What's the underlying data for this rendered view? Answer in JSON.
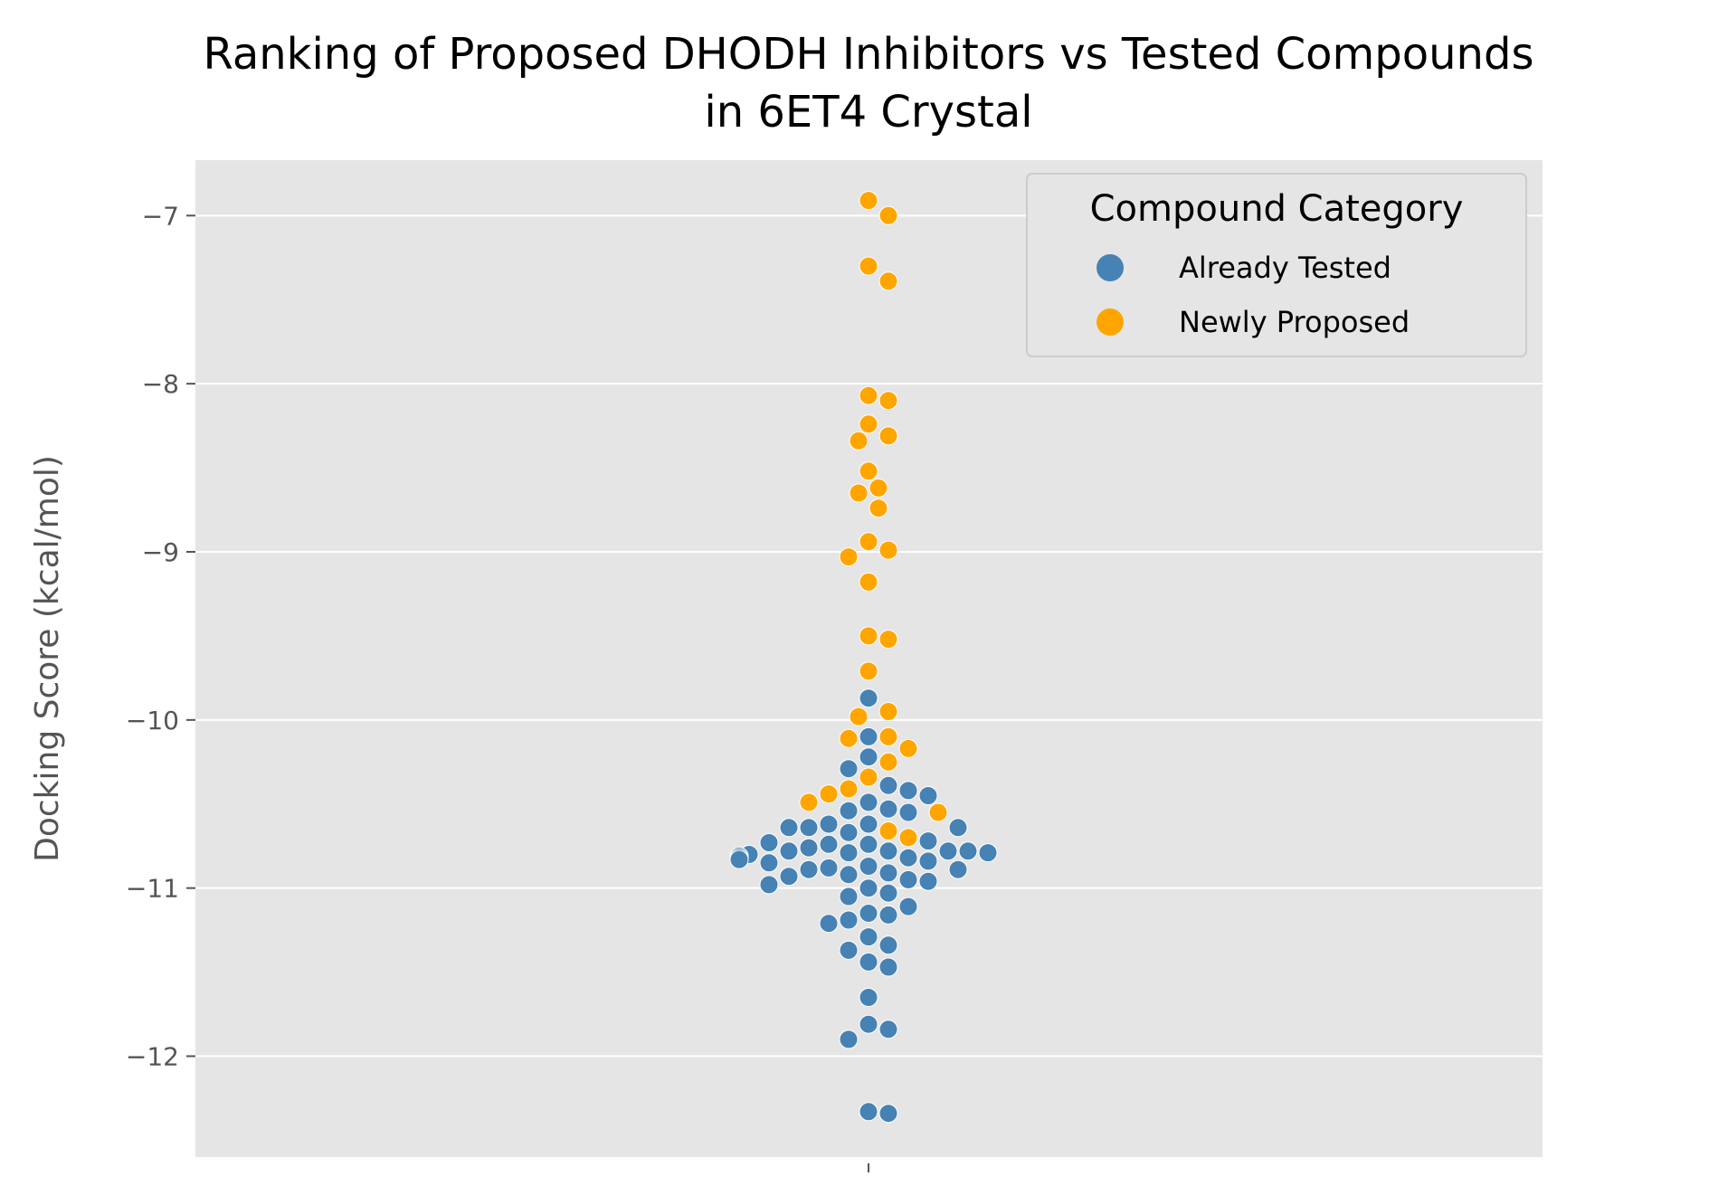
{
  "chart_data": {
    "type": "scatter",
    "title": "Ranking of Proposed DHODH Inhibitors vs Tested Compounds in 6ET4 Crystal",
    "title_lines": [
      "Ranking of Proposed DHODH Inhibitors vs Tested Compounds",
      "in 6ET4 Crystal"
    ],
    "xlabel": "",
    "ylabel": "Docking Score (kcal/mol)",
    "ylim": [
      -12.6,
      -6.67
    ],
    "yticks": [
      -12,
      -11,
      -10,
      -9,
      -8,
      -7
    ],
    "ytick_labels": [
      "−12",
      "−11",
      "−10",
      "−9",
      "−8",
      "−7"
    ],
    "grid": true,
    "legend": {
      "title": "Compound Category",
      "position": "top-right"
    },
    "series": [
      {
        "name": "Already Tested",
        "color": "#4682b4",
        "values": [
          -9.87,
          -10.1,
          -10.22,
          -10.29,
          -10.39,
          -10.42,
          -10.45,
          -10.49,
          -10.53,
          -10.54,
          -10.55,
          -10.62,
          -10.62,
          -10.64,
          -10.64,
          -10.64,
          -10.67,
          -10.72,
          -10.73,
          -10.74,
          -10.74,
          -10.76,
          -10.78,
          -10.78,
          -10.78,
          -10.78,
          -10.79,
          -10.79,
          -10.8,
          -10.81,
          -10.82,
          -10.82,
          -10.83,
          -10.84,
          -10.85,
          -10.87,
          -10.88,
          -10.89,
          -10.89,
          -10.91,
          -10.92,
          -10.93,
          -10.95,
          -10.96,
          -10.98,
          -11.0,
          -11.03,
          -11.05,
          -11.11,
          -11.15,
          -11.16,
          -11.19,
          -11.21,
          -11.29,
          -11.34,
          -11.37,
          -11.44,
          -11.47,
          -11.65,
          -11.81,
          -11.84,
          -11.9,
          -12.33,
          -12.34
        ]
      },
      {
        "name": "Newly Proposed",
        "color": "#ffa500",
        "values": [
          -6.91,
          -7.0,
          -7.3,
          -7.39,
          -8.07,
          -8.1,
          -8.24,
          -8.31,
          -8.34,
          -8.52,
          -8.62,
          -8.65,
          -8.74,
          -8.94,
          -8.99,
          -9.03,
          -9.18,
          -9.5,
          -9.52,
          -9.71,
          -9.95,
          -9.98,
          -10.1,
          -10.11,
          -10.17,
          -10.25,
          -10.34,
          -10.41,
          -10.44,
          -10.49,
          -10.55,
          -10.66,
          -10.7
        ]
      }
    ]
  }
}
